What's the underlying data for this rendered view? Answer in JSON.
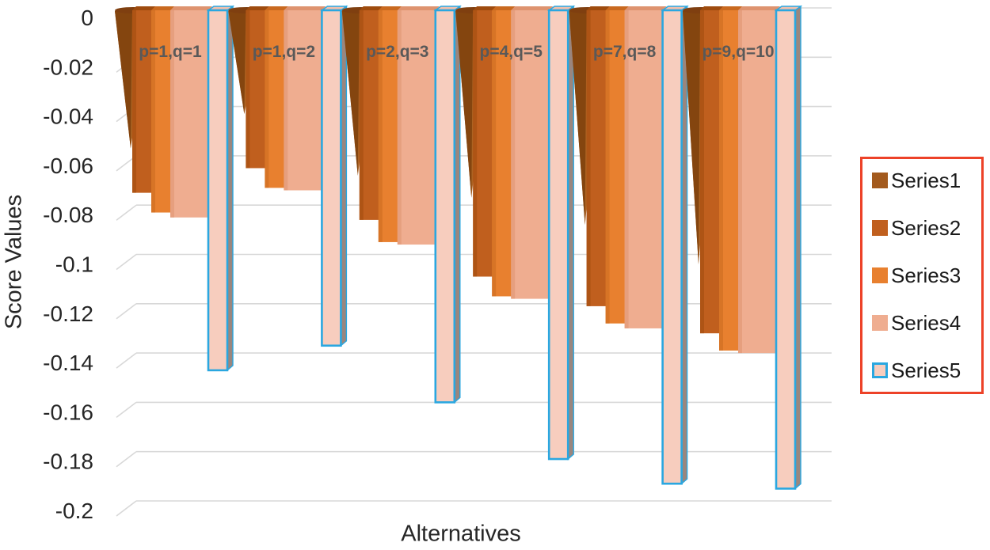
{
  "chart_data": {
    "type": "bar",
    "style": "3d-negative-columns",
    "title": "",
    "xlabel": "Alternatives",
    "ylabel": "Score Values",
    "categories": [
      "p=1,q=1",
      "p=1,q=2",
      "p=2,q=3",
      "p=4,q=5",
      "p=7,q=8",
      "p=9,q=10"
    ],
    "series": [
      {
        "name": "Series1",
        "shape": "cone",
        "color": "#A35A1D",
        "dark": "#7F3F10",
        "values": [
          -0.057,
          -0.043,
          -0.068,
          -0.077,
          -0.088,
          -0.104
        ]
      },
      {
        "name": "Series2",
        "shape": "box",
        "color": "#C05F1E",
        "dark": "#9E4B0E",
        "values": [
          -0.075,
          -0.065,
          -0.086,
          -0.109,
          -0.121,
          -0.132
        ]
      },
      {
        "name": "Series3",
        "shape": "box",
        "color": "#E8802F",
        "dark": "#C9691F",
        "values": [
          -0.083,
          -0.073,
          -0.095,
          -0.117,
          -0.128,
          -0.139
        ]
      },
      {
        "name": "Series4",
        "shape": "box",
        "color": "#EFAD90",
        "dark": "#DE936F",
        "values": [
          -0.085,
          -0.074,
          -0.096,
          -0.118,
          -0.13,
          -0.14
        ]
      },
      {
        "name": "Series5",
        "shape": "box3d",
        "color": "#F7CDBE",
        "dark": "#EFC0AE",
        "border": "#2AA7E0",
        "side": "#9A867E",
        "values": [
          -0.147,
          -0.137,
          -0.16,
          -0.183,
          -0.193,
          -0.195
        ]
      }
    ],
    "y_ticks": [
      "0",
      "-0.02",
      "-0.04",
      "-0.06",
      "-0.08",
      "-0.1",
      "-0.12",
      "-0.14",
      "-0.16",
      "-0.18",
      "-0.2"
    ],
    "ylim": [
      -0.2,
      0
    ],
    "grid": true,
    "legend_position": "right",
    "colors": {
      "background": "#FFFFFF",
      "grid": "#D8D8D8",
      "category_label": "#595959",
      "axis_text": "#262626",
      "legend_border": "#ED4228",
      "cone_main": "#AD6322",
      "cone_dark": "#84450F"
    }
  }
}
